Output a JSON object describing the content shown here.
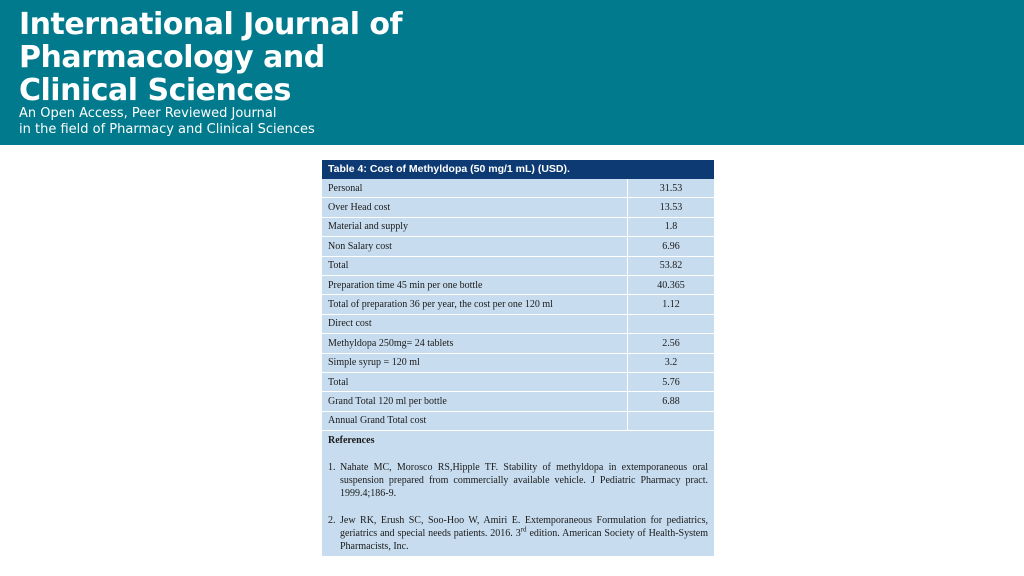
{
  "banner": {
    "title_lines": [
      "International Journal of",
      "Pharmacology and",
      "Clinical Sciences"
    ],
    "subtitle_lines": [
      "An Open Access, Peer Reviewed Journal",
      "in the field of Pharmacy and Clinical Sciences"
    ],
    "background_color": "#007a8c"
  },
  "table": {
    "caption": "Table 4: Cost of Methyldopa (50 mg/1 mL) (USD).",
    "caption_color": "#0d3a73",
    "body_color": "#c7dcee",
    "rows": [
      {
        "label": "Personal",
        "value": "31.53"
      },
      {
        "label": "Over Head cost",
        "value": "13.53"
      },
      {
        "label": "Material and supply",
        "value": "1.8"
      },
      {
        "label": "Non Salary cost",
        "value": "6.96"
      },
      {
        "label": "Total",
        "value": "53.82"
      },
      {
        "label": "Preparation time 45 min per one bottle",
        "value": "40.365"
      },
      {
        "label": "Total of preparation 36 per year, the cost per one 120 ml",
        "value": "1.12"
      },
      {
        "label": "Direct cost",
        "value": ""
      },
      {
        "label": "Methyldopa 250mg= 24 tablets",
        "value": "2.56"
      },
      {
        "label": "Simple syrup = 120 ml",
        "value": "3.2"
      },
      {
        "label": "Total",
        "value": "5.76"
      },
      {
        "label": "Grand Total 120 ml per bottle",
        "value": "6.88"
      },
      {
        "label": "Annual Grand Total cost",
        "value": ""
      }
    ]
  },
  "references": {
    "heading": "References",
    "items": [
      {
        "num": "1.",
        "text": "Nahate MC, Morosco RS,Hipple TF. Stability of methyldopa in extemporaneous oral suspension prepared from commercially available vehicle. J Pediatric Pharmacy pract. 1999.4;186-9."
      },
      {
        "num": "2.",
        "text_before": "Jew RK, Erush SC, Soo-Hoo W, Amiri E. Extemporaneous Formulation for pediatrics, geriatrics and special needs patients. 2016. 3",
        "sup": "rd",
        "text_after": " edition. American Society of Health-System Pharmacists, Inc."
      }
    ]
  }
}
